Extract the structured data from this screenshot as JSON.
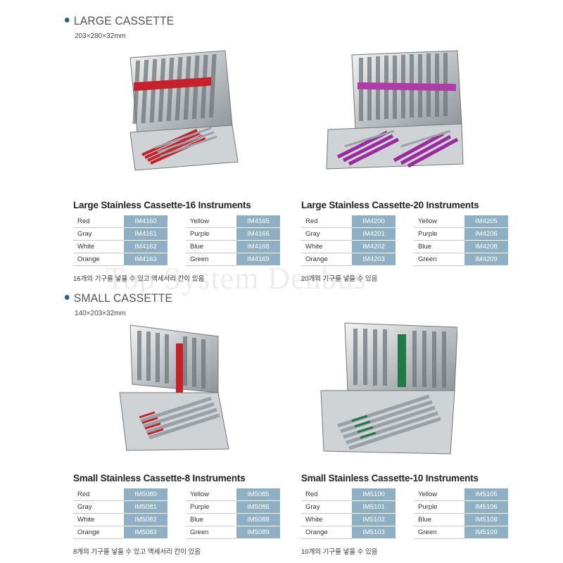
{
  "large": {
    "title": "LARGE CASSETTE",
    "dims": "203×280×32mm",
    "products": [
      {
        "title": "Large Stainless Cassette-16 Instruments",
        "rows": [
          {
            "c1": "Red",
            "k1": "IM4160",
            "c2": "Yellow",
            "k2": "IM4165"
          },
          {
            "c1": "Gray",
            "k1": "IM4161",
            "c2": "Purple",
            "k2": "IM4166"
          },
          {
            "c1": "White",
            "k1": "IM4162",
            "c2": "Blue",
            "k2": "IM4168"
          },
          {
            "c1": "Orange",
            "k1": "IM4163",
            "c2": "Green",
            "k2": "IM4169"
          }
        ],
        "note": "16개의 기구를 넣을 수 있고 액세서리 칸이 있음",
        "accent": "#c8202a"
      },
      {
        "title": "Large Stainless Cassette-20 Instruments",
        "rows": [
          {
            "c1": "Red",
            "k1": "IM4200",
            "c2": "Yellow",
            "k2": "IM4205"
          },
          {
            "c1": "Gray",
            "k1": "IM4201",
            "c2": "Purple",
            "k2": "IM4206"
          },
          {
            "c1": "White",
            "k1": "IM4202",
            "c2": "Blue",
            "k2": "IM4208"
          },
          {
            "c1": "Orange",
            "k1": "IM4203",
            "c2": "Green",
            "k2": "IM4209"
          }
        ],
        "note": "20개의 기구를 넣을 수 있음",
        "accent": "#9a2aa0"
      }
    ]
  },
  "small": {
    "title": "SMALL CASSETTE",
    "dims": "140×203×32mm",
    "products": [
      {
        "title": "Small Stainless Cassette-8 Instruments",
        "rows": [
          {
            "c1": "Red",
            "k1": "IM5080",
            "c2": "Yellow",
            "k2": "IM5085"
          },
          {
            "c1": "Gray",
            "k1": "IM5081",
            "c2": "Purple",
            "k2": "IM5086"
          },
          {
            "c1": "White",
            "k1": "IM5082",
            "c2": "Blue",
            "k2": "IM5088"
          },
          {
            "c1": "Orange",
            "k1": "IM5083",
            "c2": "Green",
            "k2": "IM5089"
          }
        ],
        "note": "8개의 기구를 넣을 수 있고 액세서리 칸이 있음",
        "accent": "#c8202a"
      },
      {
        "title": "Small Stainless Cassette-10 Instruments",
        "rows": [
          {
            "c1": "Red",
            "k1": "IM5100",
            "c2": "Yellow",
            "k2": "IM5105"
          },
          {
            "c1": "Gray",
            "k1": "IM5101",
            "c2": "Purple",
            "k2": "IM5106"
          },
          {
            "c1": "White",
            "k1": "IM5102",
            "c2": "Blue",
            "k2": "IM5108"
          },
          {
            "c1": "Orange",
            "k1": "IM5103",
            "c2": "Green",
            "k2": "IM5109"
          }
        ],
        "note": "10개의 기구를 넣을 수 있음",
        "accent": "#1f7a45"
      }
    ]
  },
  "watermark": "Top System Denbus"
}
